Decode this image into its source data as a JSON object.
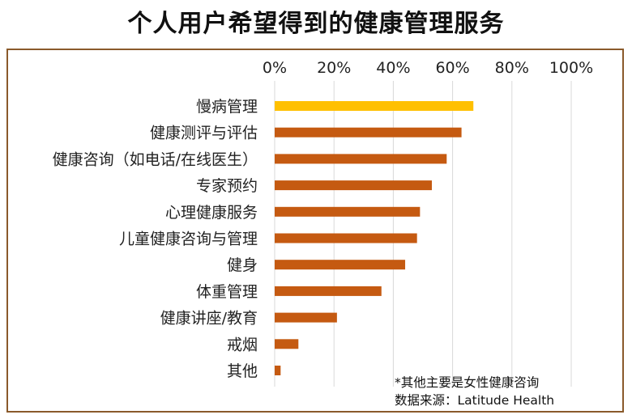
{
  "chart_data": {
    "type": "bar",
    "orientation": "horizontal",
    "title": "个人用户希望得到的健康管理服务",
    "categories": [
      "慢病管理",
      "健康测评与评估",
      "健康咨询（如电话/在线医生）",
      "专家预约",
      "心理健康服务",
      "儿童健康咨询与管理",
      "健身",
      "体重管理",
      "健康讲座/教育",
      "戒烟",
      "其他"
    ],
    "values": [
      67,
      63,
      58,
      53,
      49,
      48,
      44,
      36,
      21,
      8,
      2
    ],
    "unit": "%",
    "xlim": [
      0,
      100
    ],
    "ticks": [
      "0%",
      "20%",
      "40%",
      "60%",
      "80%",
      "100%"
    ],
    "tick_values": [
      0,
      20,
      40,
      60,
      80,
      100
    ],
    "axis_position": "top",
    "grid": true,
    "colors": {
      "highlight": "#FFC000",
      "bar": "#C55A11",
      "grid": "#D9D9D9",
      "frame": "#8A5A2B"
    },
    "highlight_index": 0,
    "annotations": [
      "*其他主要是女性健康咨询",
      "数据来源：Latitude Health"
    ]
  }
}
